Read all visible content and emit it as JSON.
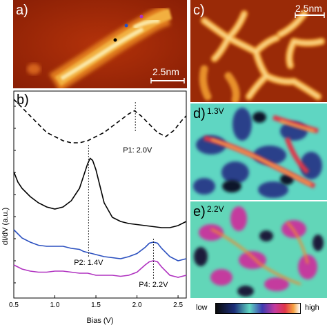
{
  "panels": {
    "a": {
      "label": "a)",
      "scalebar": "2.5nm"
    },
    "b": {
      "label": "b)"
    },
    "c": {
      "label": "c)",
      "scalebar": "2.5nm"
    },
    "d": {
      "label": "d)",
      "bias": "1.3V"
    },
    "e": {
      "label": "e)",
      "bias": "2.2V"
    }
  },
  "colorbar": {
    "low": "low",
    "high": "high"
  },
  "chart_data": {
    "type": "line",
    "xlabel": "Bias (V)",
    "ylabel": "dI/dV (a.u.)",
    "xlim": [
      0.5,
      2.6
    ],
    "xticks": [
      "0.5",
      "1.0",
      "1.5",
      "2.0",
      "2.5"
    ],
    "series": [
      {
        "color": "#000000",
        "style": "dashed",
        "x": [
          0.5,
          0.6,
          0.7,
          0.8,
          0.9,
          1.0,
          1.1,
          1.2,
          1.3,
          1.4,
          1.5,
          1.6,
          1.7,
          1.8,
          1.9,
          1.97,
          2.05,
          2.15,
          2.25,
          2.35,
          2.45,
          2.55,
          2.6
        ],
        "y": [
          0.96,
          0.92,
          0.88,
          0.84,
          0.8,
          0.78,
          0.76,
          0.75,
          0.75,
          0.76,
          0.78,
          0.8,
          0.83,
          0.86,
          0.89,
          0.905,
          0.88,
          0.84,
          0.8,
          0.78,
          0.81,
          0.86,
          0.88
        ]
      },
      {
        "color": "#000000",
        "style": "solid",
        "x": [
          0.5,
          0.55,
          0.6,
          0.7,
          0.8,
          0.9,
          1.0,
          1.1,
          1.2,
          1.3,
          1.35,
          1.4,
          1.43,
          1.46,
          1.5,
          1.55,
          1.6,
          1.7,
          1.8,
          1.9,
          2.0,
          2.1,
          2.2,
          2.3,
          2.4,
          2.5,
          2.6
        ],
        "y": [
          0.61,
          0.56,
          0.53,
          0.49,
          0.46,
          0.44,
          0.43,
          0.44,
          0.47,
          0.53,
          0.59,
          0.65,
          0.675,
          0.665,
          0.62,
          0.54,
          0.46,
          0.39,
          0.37,
          0.36,
          0.355,
          0.35,
          0.345,
          0.34,
          0.34,
          0.35,
          0.37
        ]
      },
      {
        "color": "#2a4fbf",
        "style": "solid",
        "x": [
          0.5,
          0.6,
          0.7,
          0.8,
          0.9,
          1.0,
          1.1,
          1.2,
          1.3,
          1.35,
          1.4,
          1.5,
          1.6,
          1.7,
          1.8,
          1.9,
          2.0,
          2.1,
          2.15,
          2.2,
          2.25,
          2.3,
          2.4,
          2.5,
          2.6
        ],
        "y": [
          0.33,
          0.29,
          0.27,
          0.255,
          0.25,
          0.25,
          0.25,
          0.24,
          0.235,
          0.225,
          0.22,
          0.21,
          0.2,
          0.195,
          0.19,
          0.2,
          0.215,
          0.245,
          0.265,
          0.27,
          0.265,
          0.24,
          0.2,
          0.18,
          0.19
        ]
      },
      {
        "color": "#b032c0",
        "style": "solid",
        "x": [
          0.5,
          0.6,
          0.7,
          0.8,
          0.9,
          1.0,
          1.1,
          1.2,
          1.3,
          1.4,
          1.5,
          1.6,
          1.7,
          1.8,
          1.9,
          2.0,
          2.1,
          2.15,
          2.2,
          2.25,
          2.3,
          2.4,
          2.5,
          2.6
        ],
        "y": [
          0.16,
          0.14,
          0.13,
          0.125,
          0.125,
          0.13,
          0.13,
          0.125,
          0.12,
          0.12,
          0.11,
          0.11,
          0.11,
          0.105,
          0.11,
          0.125,
          0.16,
          0.175,
          0.18,
          0.175,
          0.15,
          0.11,
          0.1,
          0.11
        ]
      }
    ],
    "markers": [
      {
        "label": "P1: 2.0V",
        "x": 1.98
      },
      {
        "label": "P2: 1.4V",
        "x": 1.41
      },
      {
        "label": "P4: 2.2V",
        "x": 2.2
      }
    ]
  }
}
